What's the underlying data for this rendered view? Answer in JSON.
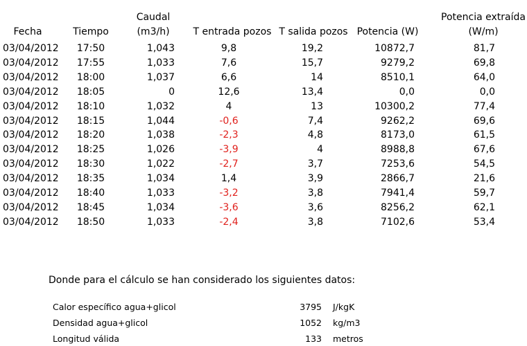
{
  "table": {
    "headers": {
      "fecha": "Fecha",
      "tiempo": "Tiempo",
      "caudal_line1": "Caudal",
      "caudal_line2": "(m3/h)",
      "t_entrada": "T entrada pozos",
      "t_salida": "T salida pozos",
      "potencia": "Potencia (W)",
      "potencia_ext_line1": "Potencia extraída",
      "potencia_ext_line2": "(W/m)"
    },
    "rows": [
      {
        "fecha": "03/04/2012",
        "tiempo": "17:50",
        "caudal": "1,043",
        "t_entrada": "9,8",
        "t_salida": "19,2",
        "potencia": "10872,7",
        "potencia_ext": "81,7",
        "t_entrada_negative": false
      },
      {
        "fecha": "03/04/2012",
        "tiempo": "17:55",
        "caudal": "1,033",
        "t_entrada": "7,6",
        "t_salida": "15,7",
        "potencia": "9279,2",
        "potencia_ext": "69,8",
        "t_entrada_negative": false
      },
      {
        "fecha": "03/04/2012",
        "tiempo": "18:00",
        "caudal": "1,037",
        "t_entrada": "6,6",
        "t_salida": "14",
        "potencia": "8510,1",
        "potencia_ext": "64,0",
        "t_entrada_negative": false
      },
      {
        "fecha": "03/04/2012",
        "tiempo": "18:05",
        "caudal": "0",
        "t_entrada": "12,6",
        "t_salida": "13,4",
        "potencia": "0,0",
        "potencia_ext": "0,0",
        "t_entrada_negative": false
      },
      {
        "fecha": "03/04/2012",
        "tiempo": "18:10",
        "caudal": "1,032",
        "t_entrada": "4",
        "t_salida": "13",
        "potencia": "10300,2",
        "potencia_ext": "77,4",
        "t_entrada_negative": false
      },
      {
        "fecha": "03/04/2012",
        "tiempo": "18:15",
        "caudal": "1,044",
        "t_entrada": "-0,6",
        "t_salida": "7,4",
        "potencia": "9262,2",
        "potencia_ext": "69,6",
        "t_entrada_negative": true
      },
      {
        "fecha": "03/04/2012",
        "tiempo": "18:20",
        "caudal": "1,038",
        "t_entrada": "-2,3",
        "t_salida": "4,8",
        "potencia": "8173,0",
        "potencia_ext": "61,5",
        "t_entrada_negative": true
      },
      {
        "fecha": "03/04/2012",
        "tiempo": "18:25",
        "caudal": "1,026",
        "t_entrada": "-3,9",
        "t_salida": "4",
        "potencia": "8988,8",
        "potencia_ext": "67,6",
        "t_entrada_negative": true
      },
      {
        "fecha": "03/04/2012",
        "tiempo": "18:30",
        "caudal": "1,022",
        "t_entrada": "-2,7",
        "t_salida": "3,7",
        "potencia": "7253,6",
        "potencia_ext": "54,5",
        "t_entrada_negative": true
      },
      {
        "fecha": "03/04/2012",
        "tiempo": "18:35",
        "caudal": "1,034",
        "t_entrada": "1,4",
        "t_salida": "3,9",
        "potencia": "2866,7",
        "potencia_ext": "21,6",
        "t_entrada_negative": false
      },
      {
        "fecha": "03/04/2012",
        "tiempo": "18:40",
        "caudal": "1,033",
        "t_entrada": "-3,2",
        "t_salida": "3,8",
        "potencia": "7941,4",
        "potencia_ext": "59,7",
        "t_entrada_negative": true
      },
      {
        "fecha": "03/04/2012",
        "tiempo": "18:45",
        "caudal": "1,034",
        "t_entrada": "-3,6",
        "t_salida": "3,6",
        "potencia": "8256,2",
        "potencia_ext": "62,1",
        "t_entrada_negative": true
      },
      {
        "fecha": "03/04/2012",
        "tiempo": "18:50",
        "caudal": "1,033",
        "t_entrada": "-2,4",
        "t_salida": "3,8",
        "potencia": "7102,6",
        "potencia_ext": "53,4",
        "t_entrada_negative": true
      }
    ]
  },
  "note": "Donde para el cálculo se han considerado los siguientes datos:",
  "parameters": [
    {
      "label": "Calor específico agua+glicol",
      "value": "3795",
      "unit": "J/kgK"
    },
    {
      "label": "Densidad agua+glicol",
      "value": "1052",
      "unit": "kg/m3"
    },
    {
      "label": "Longitud válida",
      "value": "133",
      "unit": "metros"
    }
  ],
  "colors": {
    "text": "#000000",
    "negative": "#e0201c",
    "background": "#ffffff"
  }
}
